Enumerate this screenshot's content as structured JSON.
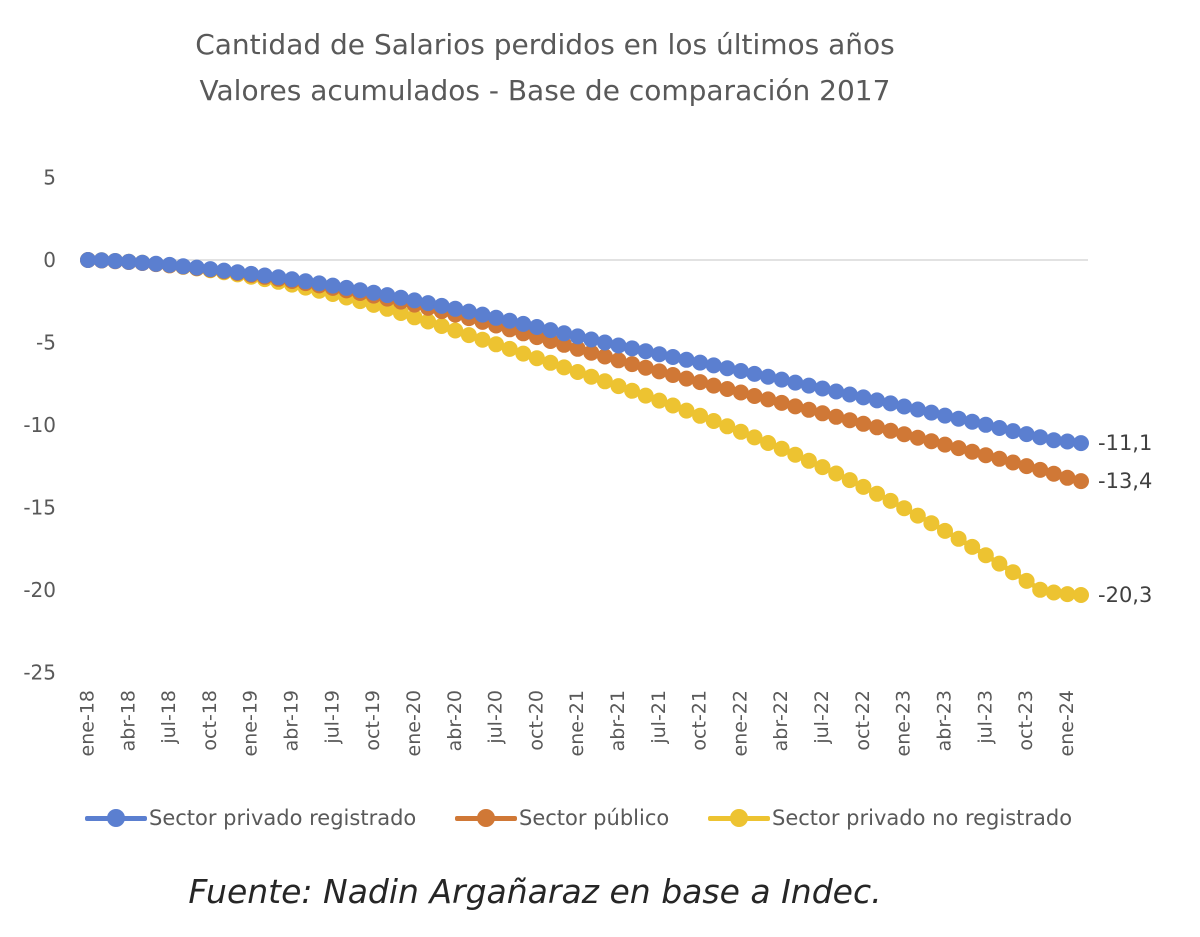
{
  "chart_data": {
    "type": "line",
    "title": "Cantidad de Salarios perdidos en los últimos años",
    "subtitle": "Valores acumulados - Base de comparación 2017",
    "xlabel": "",
    "ylabel": "",
    "ylim": [
      -25,
      5
    ],
    "yticks": [
      5,
      0,
      -5,
      -10,
      -15,
      -20,
      -25
    ],
    "grid": "zero-line only",
    "legend_position": "bottom",
    "x_tick_labels": [
      "ene-18",
      "abr-18",
      "jul-18",
      "oct-18",
      "ene-19",
      "abr-19",
      "jul-19",
      "oct-19",
      "ene-20",
      "abr-20",
      "jul-20",
      "oct-20",
      "ene-21",
      "abr-21",
      "jul-21",
      "oct-21",
      "ene-22",
      "abr-22",
      "jul-22",
      "oct-22",
      "ene-23",
      "abr-23",
      "jul-23",
      "oct-23",
      "ene-24"
    ],
    "x": [
      "ene-18",
      "feb-18",
      "mar-18",
      "abr-18",
      "may-18",
      "jun-18",
      "jul-18",
      "ago-18",
      "sep-18",
      "oct-18",
      "nov-18",
      "dic-18",
      "ene-19",
      "feb-19",
      "mar-19",
      "abr-19",
      "may-19",
      "jun-19",
      "jul-19",
      "ago-19",
      "sep-19",
      "oct-19",
      "nov-19",
      "dic-19",
      "ene-20",
      "feb-20",
      "mar-20",
      "abr-20",
      "may-20",
      "jun-20",
      "jul-20",
      "ago-20",
      "sep-20",
      "oct-20",
      "nov-20",
      "dic-20",
      "ene-21",
      "feb-21",
      "mar-21",
      "abr-21",
      "may-21",
      "jun-21",
      "jul-21",
      "ago-21",
      "sep-21",
      "oct-21",
      "nov-21",
      "dic-21",
      "ene-22",
      "feb-22",
      "mar-22",
      "abr-22",
      "may-22",
      "jun-22",
      "jul-22",
      "ago-22",
      "sep-22",
      "oct-22",
      "nov-22",
      "dic-22",
      "ene-23",
      "feb-23",
      "mar-23",
      "abr-23",
      "may-23",
      "jun-23",
      "jul-23",
      "ago-23",
      "sep-23",
      "oct-23",
      "nov-23",
      "dic-23",
      "ene-24",
      "feb-24"
    ],
    "series": [
      {
        "name": "Sector privado registrado",
        "color": "#5B7FD0",
        "end_label": "-11,1",
        "values": [
          0,
          -0.02,
          -0.06,
          -0.11,
          -0.17,
          -0.23,
          -0.3,
          -0.38,
          -0.46,
          -0.55,
          -0.64,
          -0.74,
          -0.84,
          -0.94,
          -1.05,
          -1.17,
          -1.29,
          -1.42,
          -1.55,
          -1.69,
          -1.83,
          -1.98,
          -2.13,
          -2.29,
          -2.45,
          -2.61,
          -2.78,
          -2.96,
          -3.13,
          -3.31,
          -3.5,
          -3.68,
          -3.87,
          -4.06,
          -4.25,
          -4.44,
          -4.63,
          -4.82,
          -5.0,
          -5.18,
          -5.36,
          -5.53,
          -5.71,
          -5.88,
          -6.05,
          -6.22,
          -6.39,
          -6.56,
          -6.73,
          -6.9,
          -7.07,
          -7.25,
          -7.43,
          -7.61,
          -7.79,
          -7.97,
          -8.15,
          -8.33,
          -8.51,
          -8.69,
          -8.88,
          -9.06,
          -9.25,
          -9.43,
          -9.62,
          -9.8,
          -9.99,
          -10.18,
          -10.37,
          -10.55,
          -10.74,
          -10.92,
          -11.0,
          -11.1
        ]
      },
      {
        "name": "Sector público",
        "color": "#D07836",
        "end_label": "-13,4",
        "values": [
          0,
          -0.03,
          -0.07,
          -0.12,
          -0.18,
          -0.25,
          -0.32,
          -0.4,
          -0.49,
          -0.58,
          -0.68,
          -0.79,
          -0.9,
          -1.02,
          -1.14,
          -1.27,
          -1.4,
          -1.54,
          -1.69,
          -1.84,
          -2.0,
          -2.16,
          -2.34,
          -2.52,
          -2.7,
          -2.9,
          -3.1,
          -3.31,
          -3.52,
          -3.75,
          -3.97,
          -4.2,
          -4.44,
          -4.67,
          -4.91,
          -5.14,
          -5.38,
          -5.62,
          -5.85,
          -6.08,
          -6.31,
          -6.53,
          -6.75,
          -6.97,
          -7.19,
          -7.4,
          -7.61,
          -7.82,
          -8.03,
          -8.24,
          -8.45,
          -8.66,
          -8.87,
          -9.08,
          -9.29,
          -9.5,
          -9.71,
          -9.93,
          -10.14,
          -10.35,
          -10.56,
          -10.77,
          -10.98,
          -11.19,
          -11.4,
          -11.62,
          -11.83,
          -12.05,
          -12.27,
          -12.49,
          -12.72,
          -12.95,
          -13.2,
          -13.4
        ]
      },
      {
        "name": "Sector privado no registrado",
        "color": "#EDC331",
        "end_label": "-20,3",
        "values": [
          0,
          -0.02,
          -0.06,
          -0.11,
          -0.17,
          -0.24,
          -0.32,
          -0.41,
          -0.51,
          -0.62,
          -0.74,
          -0.87,
          -1.01,
          -1.16,
          -1.32,
          -1.49,
          -1.67,
          -1.86,
          -2.06,
          -2.27,
          -2.49,
          -2.72,
          -2.96,
          -3.21,
          -3.47,
          -3.73,
          -4.0,
          -4.27,
          -4.55,
          -4.83,
          -5.11,
          -5.39,
          -5.67,
          -5.95,
          -6.23,
          -6.51,
          -6.79,
          -7.07,
          -7.35,
          -7.64,
          -7.93,
          -8.22,
          -8.52,
          -8.82,
          -9.13,
          -9.44,
          -9.76,
          -10.08,
          -10.41,
          -10.75,
          -11.09,
          -11.44,
          -11.8,
          -12.17,
          -12.55,
          -12.94,
          -13.34,
          -13.75,
          -14.17,
          -14.6,
          -15.04,
          -15.49,
          -15.95,
          -16.42,
          -16.9,
          -17.39,
          -17.89,
          -18.4,
          -18.92,
          -19.45,
          -19.99,
          -20.15,
          -20.25,
          -20.3
        ]
      }
    ]
  },
  "source": "Fuente: Nadin Argañaraz en base a Indec."
}
